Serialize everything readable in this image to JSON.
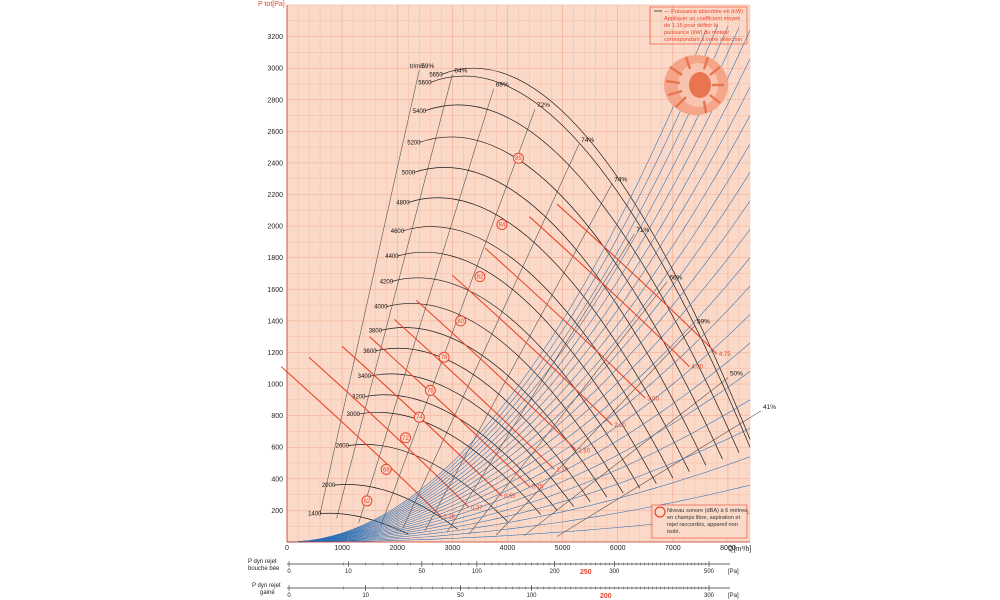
{
  "colors": {
    "plot_bg": "#fbd9c8",
    "grid": "#f2a98d",
    "accent": "#e8452c",
    "speed_curve": "#1a1a1a",
    "iso_resistance": "#2a6fb5",
    "power_curve": "#e8452c",
    "efficiency_line": "#555555"
  },
  "chart_data": {
    "type": "line",
    "title": "",
    "ylabel": "P tot[Pa]",
    "xlabel": "Q[m³/h]",
    "xlim": [
      0,
      8400
    ],
    "ylim": [
      0,
      3400
    ],
    "x_ticks": [
      "0",
      "1000",
      "2000",
      "3000",
      "4000",
      "5000",
      "6000",
      "7000",
      "8000"
    ],
    "y_ticks": [
      "200",
      "400",
      "600",
      "800",
      "1000",
      "1200",
      "1400",
      "1600",
      "1800",
      "2000",
      "2200",
      "2400",
      "2600",
      "2800",
      "3000",
      "3200"
    ],
    "grid": true,
    "speed_header": "tr/min",
    "speed_curves": [
      {
        "rpm": "1400",
        "q_start": 600,
        "p_start": 180,
        "q_end": 2200,
        "p_end": 50
      },
      {
        "rpm": "2000",
        "q_start": 850,
        "p_start": 360,
        "q_end": 3100,
        "p_end": 80
      },
      {
        "rpm": "2600",
        "q_start": 1100,
        "p_start": 610,
        "q_end": 4000,
        "p_end": 130
      },
      {
        "rpm": "3000",
        "q_start": 1300,
        "p_start": 810,
        "q_end": 4600,
        "p_end": 175
      },
      {
        "rpm": "3200",
        "q_start": 1400,
        "p_start": 920,
        "q_end": 4900,
        "p_end": 200
      },
      {
        "rpm": "3400",
        "q_start": 1500,
        "p_start": 1050,
        "q_end": 5200,
        "p_end": 225
      },
      {
        "rpm": "3600",
        "q_start": 1600,
        "p_start": 1210,
        "q_end": 5500,
        "p_end": 255
      },
      {
        "rpm": "3800",
        "q_start": 1700,
        "p_start": 1340,
        "q_end": 5800,
        "p_end": 285
      },
      {
        "rpm": "4000",
        "q_start": 1800,
        "p_start": 1490,
        "q_end": 6100,
        "p_end": 310
      },
      {
        "rpm": "4200",
        "q_start": 1900,
        "p_start": 1650,
        "q_end": 6400,
        "p_end": 340
      },
      {
        "rpm": "4400",
        "q_start": 2000,
        "p_start": 1810,
        "q_end": 6700,
        "p_end": 370
      },
      {
        "rpm": "4600",
        "q_start": 2100,
        "p_start": 1970,
        "q_end": 7000,
        "p_end": 405
      },
      {
        "rpm": "4800",
        "q_start": 2200,
        "p_start": 2150,
        "q_end": 7300,
        "p_end": 445
      },
      {
        "rpm": "5000",
        "q_start": 2300,
        "p_start": 2340,
        "q_end": 7600,
        "p_end": 485
      },
      {
        "rpm": "5200",
        "q_start": 2400,
        "p_start": 2530,
        "q_end": 7900,
        "p_end": 525
      },
      {
        "rpm": "5400",
        "q_start": 2500,
        "p_start": 2730,
        "q_end": 8200,
        "p_end": 565
      },
      {
        "rpm": "5600",
        "q_start": 2600,
        "p_start": 2910,
        "q_end": 8400,
        "p_end": 600
      },
      {
        "rpm": "5650",
        "q_start": 2800,
        "p_start": 2960,
        "q_end": 8400,
        "p_end": 650
      }
    ],
    "efficiency_lines": [
      {
        "label": "59%",
        "q": [
          600,
          2400
        ],
        "p": [
          180,
          2990
        ]
      },
      {
        "label": "64%",
        "q": [
          900,
          3000
        ],
        "p": [
          150,
          2960
        ]
      },
      {
        "label": "69%",
        "q": [
          1300,
          3750
        ],
        "p": [
          120,
          2870
        ]
      },
      {
        "label": "72%",
        "q": [
          1700,
          4500
        ],
        "p": [
          100,
          2740
        ]
      },
      {
        "label": "74%",
        "q": [
          2100,
          5300
        ],
        "p": [
          85,
          2520
        ]
      },
      {
        "label": "74%",
        "q": [
          2500,
          5900
        ],
        "p": [
          70,
          2270
        ]
      },
      {
        "label": "71%",
        "q": [
          2900,
          6300
        ],
        "p": [
          60,
          1950
        ]
      },
      {
        "label": "66%",
        "q": [
          3300,
          6900
        ],
        "p": [
          50,
          1650
        ]
      },
      {
        "label": "59%",
        "q": [
          3800,
          7400
        ],
        "p": [
          45,
          1370
        ]
      },
      {
        "label": "50%",
        "q": [
          4300,
          8000
        ],
        "p": [
          40,
          1040
        ]
      },
      {
        "label": "41%",
        "q": [
          4900,
          8600
        ],
        "p": [
          35,
          830
        ]
      }
    ],
    "power_labels": [
      {
        "label": "4.75",
        "q": 7800,
        "p": 1190
      },
      {
        "label": "4.00",
        "q": 7300,
        "p": 1110
      },
      {
        "label": "3.00",
        "q": 6500,
        "p": 910
      },
      {
        "label": "2.20",
        "q": 5900,
        "p": 740
      },
      {
        "label": "1.50",
        "q": 5250,
        "p": 580
      },
      {
        "label": "1.10",
        "q": 4850,
        "p": 460
      },
      {
        "label": "0.75",
        "q": 4400,
        "p": 350
      },
      {
        "label": "0.55",
        "q": 3900,
        "p": 290
      },
      {
        "label": "0.37",
        "q": 3300,
        "p": 220
      },
      {
        "label": "0.25",
        "q": 2800,
        "p": 160
      }
    ],
    "sound_levels": [
      {
        "label": "85",
        "q": 4200,
        "p": 2430
      },
      {
        "label": "84",
        "q": 3900,
        "p": 2010
      },
      {
        "label": "82",
        "q": 3500,
        "p": 1680
      },
      {
        "label": "80",
        "q": 3150,
        "p": 1400
      },
      {
        "label": "78",
        "q": 2850,
        "p": 1170
      },
      {
        "label": "76",
        "q": 2600,
        "p": 960
      },
      {
        "label": "74",
        "q": 2400,
        "p": 790
      },
      {
        "label": "72",
        "q": 2150,
        "p": 660
      },
      {
        "label": "68",
        "q": 1800,
        "p": 460
      },
      {
        "label": "62",
        "q": 1450,
        "p": 260
      }
    ]
  },
  "note_top": {
    "lines": [
      "— Puissance absorbée en (kW)",
      "Appliquer un coefficient moyen",
      "de 1.15 pour définir la",
      "puissance (kW) du moteur",
      "correspondant à votre sélection"
    ]
  },
  "note_bottom": {
    "lines": [
      "Niveau sonore (dBA) à 6 mètres,",
      "en champs libre, aspiration et",
      "rejet raccordés, appareil non",
      "isolé."
    ]
  },
  "scales": {
    "bouche_label_1": "P dyn rejet",
    "bouche_label_2": "bouche bée",
    "bouche_ticks": [
      "0",
      "10",
      "50",
      "100",
      "200",
      "300",
      "500"
    ],
    "bouche_highlight": "250",
    "gaine_label_1": "P dyn rejet",
    "gaine_label_2": "gainé",
    "gaine_ticks": [
      "0",
      "10",
      "50",
      "100",
      "300"
    ],
    "gaine_highlight": "200",
    "unit": "[Pa]"
  }
}
